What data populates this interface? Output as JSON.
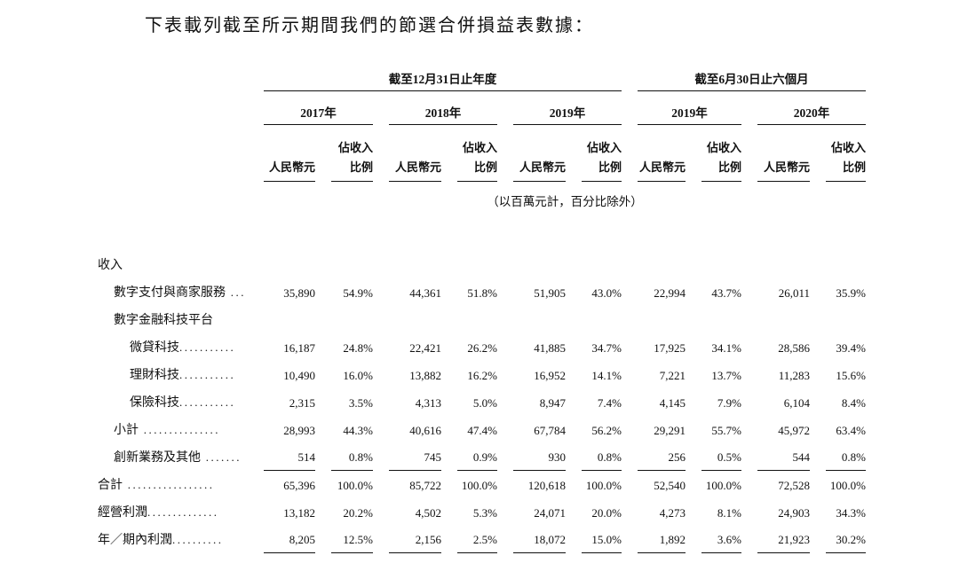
{
  "page": {
    "title": "下表載列截至所示期間我們的節選合併損益表數據：",
    "ink_color": "#111111",
    "background_color": "#ffffff"
  },
  "table": {
    "group_headers": [
      {
        "label": "截至12月31日止年度"
      },
      {
        "label": "截至6月30日止六個月"
      }
    ],
    "years": [
      "2017年",
      "2018年",
      "2019年",
      "2019年",
      "2020年"
    ],
    "subheaders": {
      "amount": "人民幣元",
      "pct_line1": "佔收入",
      "pct_line2": "比例"
    },
    "note": "（以百萬元計，百分比除外）",
    "rows": [
      {
        "label": "收入",
        "leader": "",
        "indent": 0,
        "underline": false,
        "values": [
          "",
          "",
          "",
          "",
          "",
          "",
          "",
          "",
          "",
          ""
        ]
      },
      {
        "label": "數字支付與商家服務",
        "leader": " ...",
        "indent": 1,
        "underline": false,
        "values": [
          "35,890",
          "54.9%",
          "44,361",
          "51.8%",
          "51,905",
          "43.0%",
          "22,994",
          "43.7%",
          "26,011",
          "35.9%"
        ]
      },
      {
        "label": "數字金融科技平台",
        "leader": "",
        "indent": 1,
        "underline": false,
        "values": [
          "",
          "",
          "",
          "",
          "",
          "",
          "",
          "",
          "",
          ""
        ]
      },
      {
        "label": "微貸科技",
        "leader": "...........",
        "indent": 2,
        "underline": false,
        "values": [
          "16,187",
          "24.8%",
          "22,421",
          "26.2%",
          "41,885",
          "34.7%",
          "17,925",
          "34.1%",
          "28,586",
          "39.4%"
        ]
      },
      {
        "label": "理財科技",
        "leader": "...........",
        "indent": 2,
        "underline": false,
        "values": [
          "10,490",
          "16.0%",
          "13,882",
          "16.2%",
          "16,952",
          "14.1%",
          "7,221",
          "13.7%",
          "11,283",
          "15.6%"
        ]
      },
      {
        "label": "保險科技",
        "leader": "...........",
        "indent": 2,
        "underline": false,
        "values": [
          "2,315",
          "3.5%",
          "4,313",
          "5.0%",
          "8,947",
          "7.4%",
          "4,145",
          "7.9%",
          "6,104",
          "8.4%"
        ]
      },
      {
        "label": "小計",
        "leader": " ...............",
        "indent": 1,
        "underline": false,
        "values": [
          "28,993",
          "44.3%",
          "40,616",
          "47.4%",
          "67,784",
          "56.2%",
          "29,291",
          "55.7%",
          "45,972",
          "63.4%"
        ]
      },
      {
        "label": "創新業務及其他",
        "leader": " .......",
        "indent": 1,
        "underline": true,
        "values": [
          "514",
          "0.8%",
          "745",
          "0.9%",
          "930",
          "0.8%",
          "256",
          "0.5%",
          "544",
          "0.8%"
        ]
      },
      {
        "label": "合計",
        "leader": " .................",
        "indent": 0,
        "underline": false,
        "values": [
          "65,396",
          "100.0%",
          "85,722",
          "100.0%",
          "120,618",
          "100.0%",
          "52,540",
          "100.0%",
          "72,528",
          "100.0%"
        ]
      },
      {
        "label": "經營利潤",
        "leader": "..............",
        "indent": 0,
        "underline": false,
        "values": [
          "13,182",
          "20.2%",
          "4,502",
          "5.3%",
          "24,071",
          "20.0%",
          "4,273",
          "8.1%",
          "24,903",
          "34.3%"
        ]
      },
      {
        "label": "年／期內利潤",
        "leader": "..........",
        "indent": 0,
        "underline": true,
        "values": [
          "8,205",
          "12.5%",
          "2,156",
          "2.5%",
          "18,072",
          "15.0%",
          "1,892",
          "3.6%",
          "21,923",
          "30.2%"
        ]
      }
    ]
  }
}
